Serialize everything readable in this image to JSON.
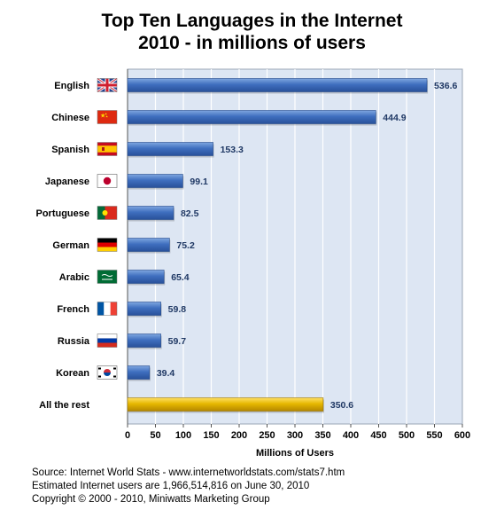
{
  "chart_data": {
    "type": "bar",
    "orientation": "horizontal",
    "title": "Top Ten Languages in the Internet",
    "subtitle": "2010 - in millions of users",
    "xlabel": "Millions of Users",
    "ylabel": "",
    "xlim": [
      0,
      600
    ],
    "x_ticks": [
      0,
      50,
      100,
      150,
      200,
      250,
      300,
      350,
      400,
      450,
      500,
      550,
      600
    ],
    "grid": true,
    "categories": [
      "English",
      "Chinese",
      "Spanish",
      "Japanese",
      "Portuguese",
      "German",
      "Arabic",
      "French",
      "Russia",
      "Korean",
      "All the rest"
    ],
    "values": [
      536.6,
      444.9,
      153.3,
      99.1,
      82.5,
      75.2,
      65.4,
      59.8,
      59.7,
      39.4,
      350.6
    ],
    "value_labels": [
      "536.6",
      "444.9",
      "153.3",
      "99.1",
      "82.5",
      "75.2",
      "65.4",
      "59.8",
      "59.7",
      "39.4",
      "350.6"
    ],
    "flags": [
      "uk-flag-icon",
      "china-flag-icon",
      "spain-flag-icon",
      "japan-flag-icon",
      "portugal-flag-icon",
      "germany-flag-icon",
      "saudi-arabia-flag-icon",
      "france-flag-icon",
      "russia-flag-icon",
      "korea-flag-icon",
      ""
    ],
    "colors": {
      "bar": "#3f6fbf",
      "bar_highlight": "#e6b800",
      "plot_background": "#dde6f3",
      "grid": "#ffffff",
      "value_label": "#1f3864"
    }
  },
  "footer": {
    "source": "Source: Internet World Stats - www.internetworldstats.com/stats7.htm",
    "estimate": "Estimated Internet users are 1,966,514,816 on June 30, 2010",
    "copyright": "Copyright © 2000 - 2010, Miniwatts Marketing Group"
  }
}
